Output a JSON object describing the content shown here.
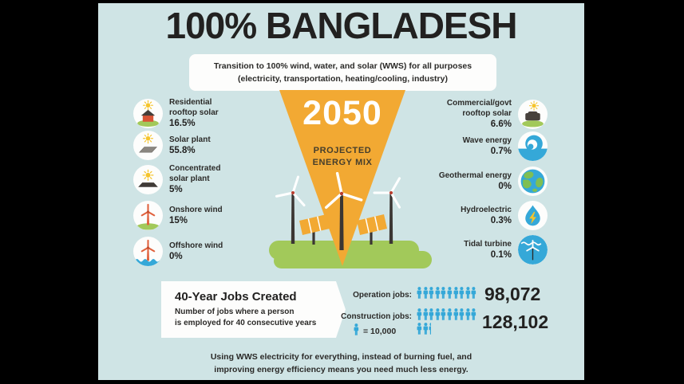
{
  "infographic": {
    "title": "100% BANGLADESH",
    "subtitle": "Transition to 100% wind, water, and solar (WWS) for all purposes\n(electricity, transportation, heating/cooling, industry)",
    "center": {
      "year": "2050",
      "mix_label": "PROJECTED\nENERGY MIX"
    },
    "left_items": [
      {
        "label": "Residential\nrooftop solar",
        "value": "16.5%",
        "icon": "residential-rooftop-solar-icon"
      },
      {
        "label": "Solar plant",
        "value": "55.8%",
        "icon": "solar-plant-icon"
      },
      {
        "label": "Concentrated\nsolar plant",
        "value": "5%",
        "icon": "concentrated-solar-plant-icon"
      },
      {
        "label": "Onshore wind",
        "value": "15%",
        "icon": "onshore-wind-icon"
      },
      {
        "label": "Offshore wind",
        "value": "0%",
        "icon": "offshore-wind-icon"
      }
    ],
    "right_items": [
      {
        "label": "Commercial/govt\nrooftop solar",
        "value": "6.6%",
        "icon": "commercial-rooftop-solar-icon"
      },
      {
        "label": "Wave energy",
        "value": "0.7%",
        "icon": "wave-energy-icon"
      },
      {
        "label": "Geothermal energy",
        "value": "0%",
        "icon": "geothermal-energy-icon"
      },
      {
        "label": "Hydroelectric",
        "value": "0.3%",
        "icon": "hydroelectric-icon"
      },
      {
        "label": "Tidal turbine",
        "value": "0.1%",
        "icon": "tidal-turbine-icon"
      }
    ],
    "jobs": {
      "box_title": "40-Year Jobs Created",
      "box_desc": "Number of jobs where a person\nis employed for 40 consecutive years",
      "rows": [
        {
          "label": "Operation jobs:",
          "value": "98,072",
          "icons_row1": 10,
          "icons_row1_partial": 0,
          "icons_row2": 0,
          "icons_row2_partial": 0
        },
        {
          "label": "Construction jobs:",
          "value": "128,102",
          "icons_row1": 10,
          "icons_row1_partial": 0,
          "icons_row2": 2,
          "icons_row2_partial": 1
        }
      ],
      "legend_label": "= 10,000",
      "icon_unit": 10000
    },
    "footer": "Using WWS electricity for everything, instead of burning fuel, and\nimproving energy efficiency means you need much less energy.",
    "colors": {
      "background": "#cfe4e5",
      "accent_orange": "#f2a933",
      "accent_blue": "#35a8d8",
      "accent_green": "#a2c95a",
      "sun_yellow": "#f5c42c",
      "turbine_red": "#e0603c",
      "text_dark": "#222120"
    }
  },
  "chart_data": [
    {
      "type": "pie",
      "title": "2050 Projected Energy Mix (100% Bangladesh, WWS)",
      "categories": [
        "Residential rooftop solar",
        "Solar plant",
        "Concentrated solar plant",
        "Onshore wind",
        "Offshore wind",
        "Commercial/govt rooftop solar",
        "Wave energy",
        "Geothermal energy",
        "Hydroelectric",
        "Tidal turbine"
      ],
      "values": [
        16.5,
        55.8,
        5,
        15,
        0,
        6.6,
        0.7,
        0,
        0.3,
        0.1
      ],
      "unit": "%"
    },
    {
      "type": "bar",
      "title": "40-Year Jobs Created",
      "categories": [
        "Operation jobs",
        "Construction jobs"
      ],
      "values": [
        98072,
        128102
      ],
      "note": "1 person icon = 10,000 jobs"
    }
  ]
}
